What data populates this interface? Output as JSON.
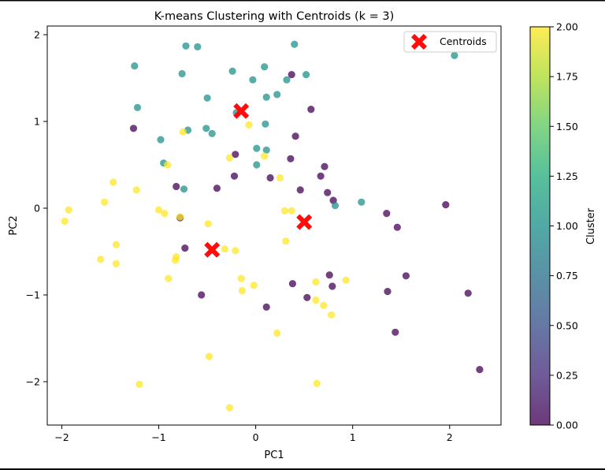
{
  "chart_data": {
    "type": "scatter",
    "title": "K-means Clustering with Centroids (k = 3)",
    "xlabel": "PC1",
    "ylabel": "PC2",
    "xlim": [
      -2.15,
      2.53
    ],
    "ylim": [
      -2.5,
      2.1
    ],
    "x_ticks": [
      -2,
      -1,
      0,
      1,
      2
    ],
    "y_ticks": [
      -2,
      -1,
      0,
      1,
      2
    ],
    "grid": false,
    "colorbar": {
      "label": "Cluster",
      "range": [
        0.0,
        2.0
      ],
      "ticks": [
        "0.00",
        "0.25",
        "0.50",
        "0.75",
        "1.00",
        "1.25",
        "1.50",
        "1.75",
        "2.00"
      ],
      "colormap": "viridis"
    },
    "legend": {
      "position": "upper-right",
      "entries": [
        "Centroids"
      ]
    },
    "point_alpha": 0.75,
    "series": [
      {
        "cluster": 0,
        "color": "#440154",
        "points": [
          [
            0.37,
            1.54
          ],
          [
            0.57,
            1.14
          ],
          [
            -1.26,
            0.92
          ],
          [
            0.41,
            0.83
          ],
          [
            -0.21,
            0.62
          ],
          [
            0.36,
            0.57
          ],
          [
            0.71,
            0.48
          ],
          [
            0.67,
            0.37
          ],
          [
            -0.22,
            0.37
          ],
          [
            0.15,
            0.35
          ],
          [
            -0.82,
            0.25
          ],
          [
            -0.4,
            0.23
          ],
          [
            0.46,
            0.21
          ],
          [
            0.74,
            0.18
          ],
          [
            0.8,
            0.09
          ],
          [
            1.96,
            0.04
          ],
          [
            1.35,
            -0.06
          ],
          [
            1.46,
            -0.22
          ],
          [
            -0.78,
            -0.11
          ],
          [
            -0.73,
            -0.46
          ],
          [
            0.76,
            -0.77
          ],
          [
            1.55,
            -0.78
          ],
          [
            0.38,
            -0.87
          ],
          [
            0.79,
            -0.9
          ],
          [
            1.36,
            -0.96
          ],
          [
            2.19,
            -0.98
          ],
          [
            -0.56,
            -1.0
          ],
          [
            0.53,
            -1.03
          ],
          [
            0.11,
            -1.14
          ],
          [
            1.44,
            -1.43
          ],
          [
            2.31,
            -1.86
          ]
        ]
      },
      {
        "cluster": 1,
        "color": "#21918c",
        "points": [
          [
            0.4,
            1.89
          ],
          [
            -0.72,
            1.87
          ],
          [
            -0.6,
            1.86
          ],
          [
            2.05,
            1.76
          ],
          [
            -1.25,
            1.64
          ],
          [
            0.09,
            1.63
          ],
          [
            -0.24,
            1.58
          ],
          [
            -0.76,
            1.55
          ],
          [
            0.52,
            1.54
          ],
          [
            0.32,
            1.48
          ],
          [
            -0.03,
            1.48
          ],
          [
            0.22,
            1.31
          ],
          [
            0.11,
            1.28
          ],
          [
            -0.5,
            1.27
          ],
          [
            -1.22,
            1.16
          ],
          [
            -0.2,
            1.1
          ],
          [
            0.1,
            0.97
          ],
          [
            -0.51,
            0.92
          ],
          [
            -0.7,
            0.9
          ],
          [
            -0.45,
            0.86
          ],
          [
            -0.98,
            0.79
          ],
          [
            0.01,
            0.69
          ],
          [
            0.11,
            0.67
          ],
          [
            -0.95,
            0.52
          ],
          [
            0.01,
            0.5
          ],
          [
            -0.74,
            0.22
          ],
          [
            1.09,
            0.07
          ],
          [
            0.82,
            0.03
          ]
        ]
      },
      {
        "cluster": 2,
        "color": "#fde725",
        "points": [
          [
            -0.07,
            0.96
          ],
          [
            -0.75,
            0.88
          ],
          [
            0.09,
            0.6
          ],
          [
            -0.27,
            0.58
          ],
          [
            -0.91,
            0.5
          ],
          [
            0.25,
            0.35
          ],
          [
            -1.47,
            0.3
          ],
          [
            -1.23,
            0.21
          ],
          [
            -1.56,
            0.07
          ],
          [
            -1.93,
            -0.02
          ],
          [
            -1.0,
            -0.02
          ],
          [
            0.3,
            -0.03
          ],
          [
            0.37,
            -0.03
          ],
          [
            -0.94,
            -0.06
          ],
          [
            -0.78,
            -0.1
          ],
          [
            -1.97,
            -0.15
          ],
          [
            -0.49,
            -0.18
          ],
          [
            0.31,
            -0.38
          ],
          [
            -1.44,
            -0.42
          ],
          [
            -0.32,
            -0.47
          ],
          [
            -0.21,
            -0.49
          ],
          [
            -0.82,
            -0.56
          ],
          [
            -0.83,
            -0.6
          ],
          [
            -1.6,
            -0.59
          ],
          [
            -1.44,
            -0.64
          ],
          [
            -0.9,
            -0.81
          ],
          [
            -0.15,
            -0.81
          ],
          [
            0.62,
            -0.85
          ],
          [
            0.93,
            -0.83
          ],
          [
            -0.02,
            -0.89
          ],
          [
            -0.14,
            -0.95
          ],
          [
            0.62,
            -1.06
          ],
          [
            0.7,
            -1.12
          ],
          [
            0.78,
            -1.23
          ],
          [
            0.22,
            -1.44
          ],
          [
            -0.48,
            -1.71
          ],
          [
            -1.2,
            -2.03
          ],
          [
            0.63,
            -2.02
          ],
          [
            -0.27,
            -2.3
          ]
        ]
      }
    ],
    "centroids": {
      "name": "Centroids",
      "marker": "X",
      "color": "#ff0000",
      "points": [
        [
          -0.15,
          1.12
        ],
        [
          0.5,
          -0.16
        ],
        [
          -0.45,
          -0.48
        ]
      ]
    }
  }
}
